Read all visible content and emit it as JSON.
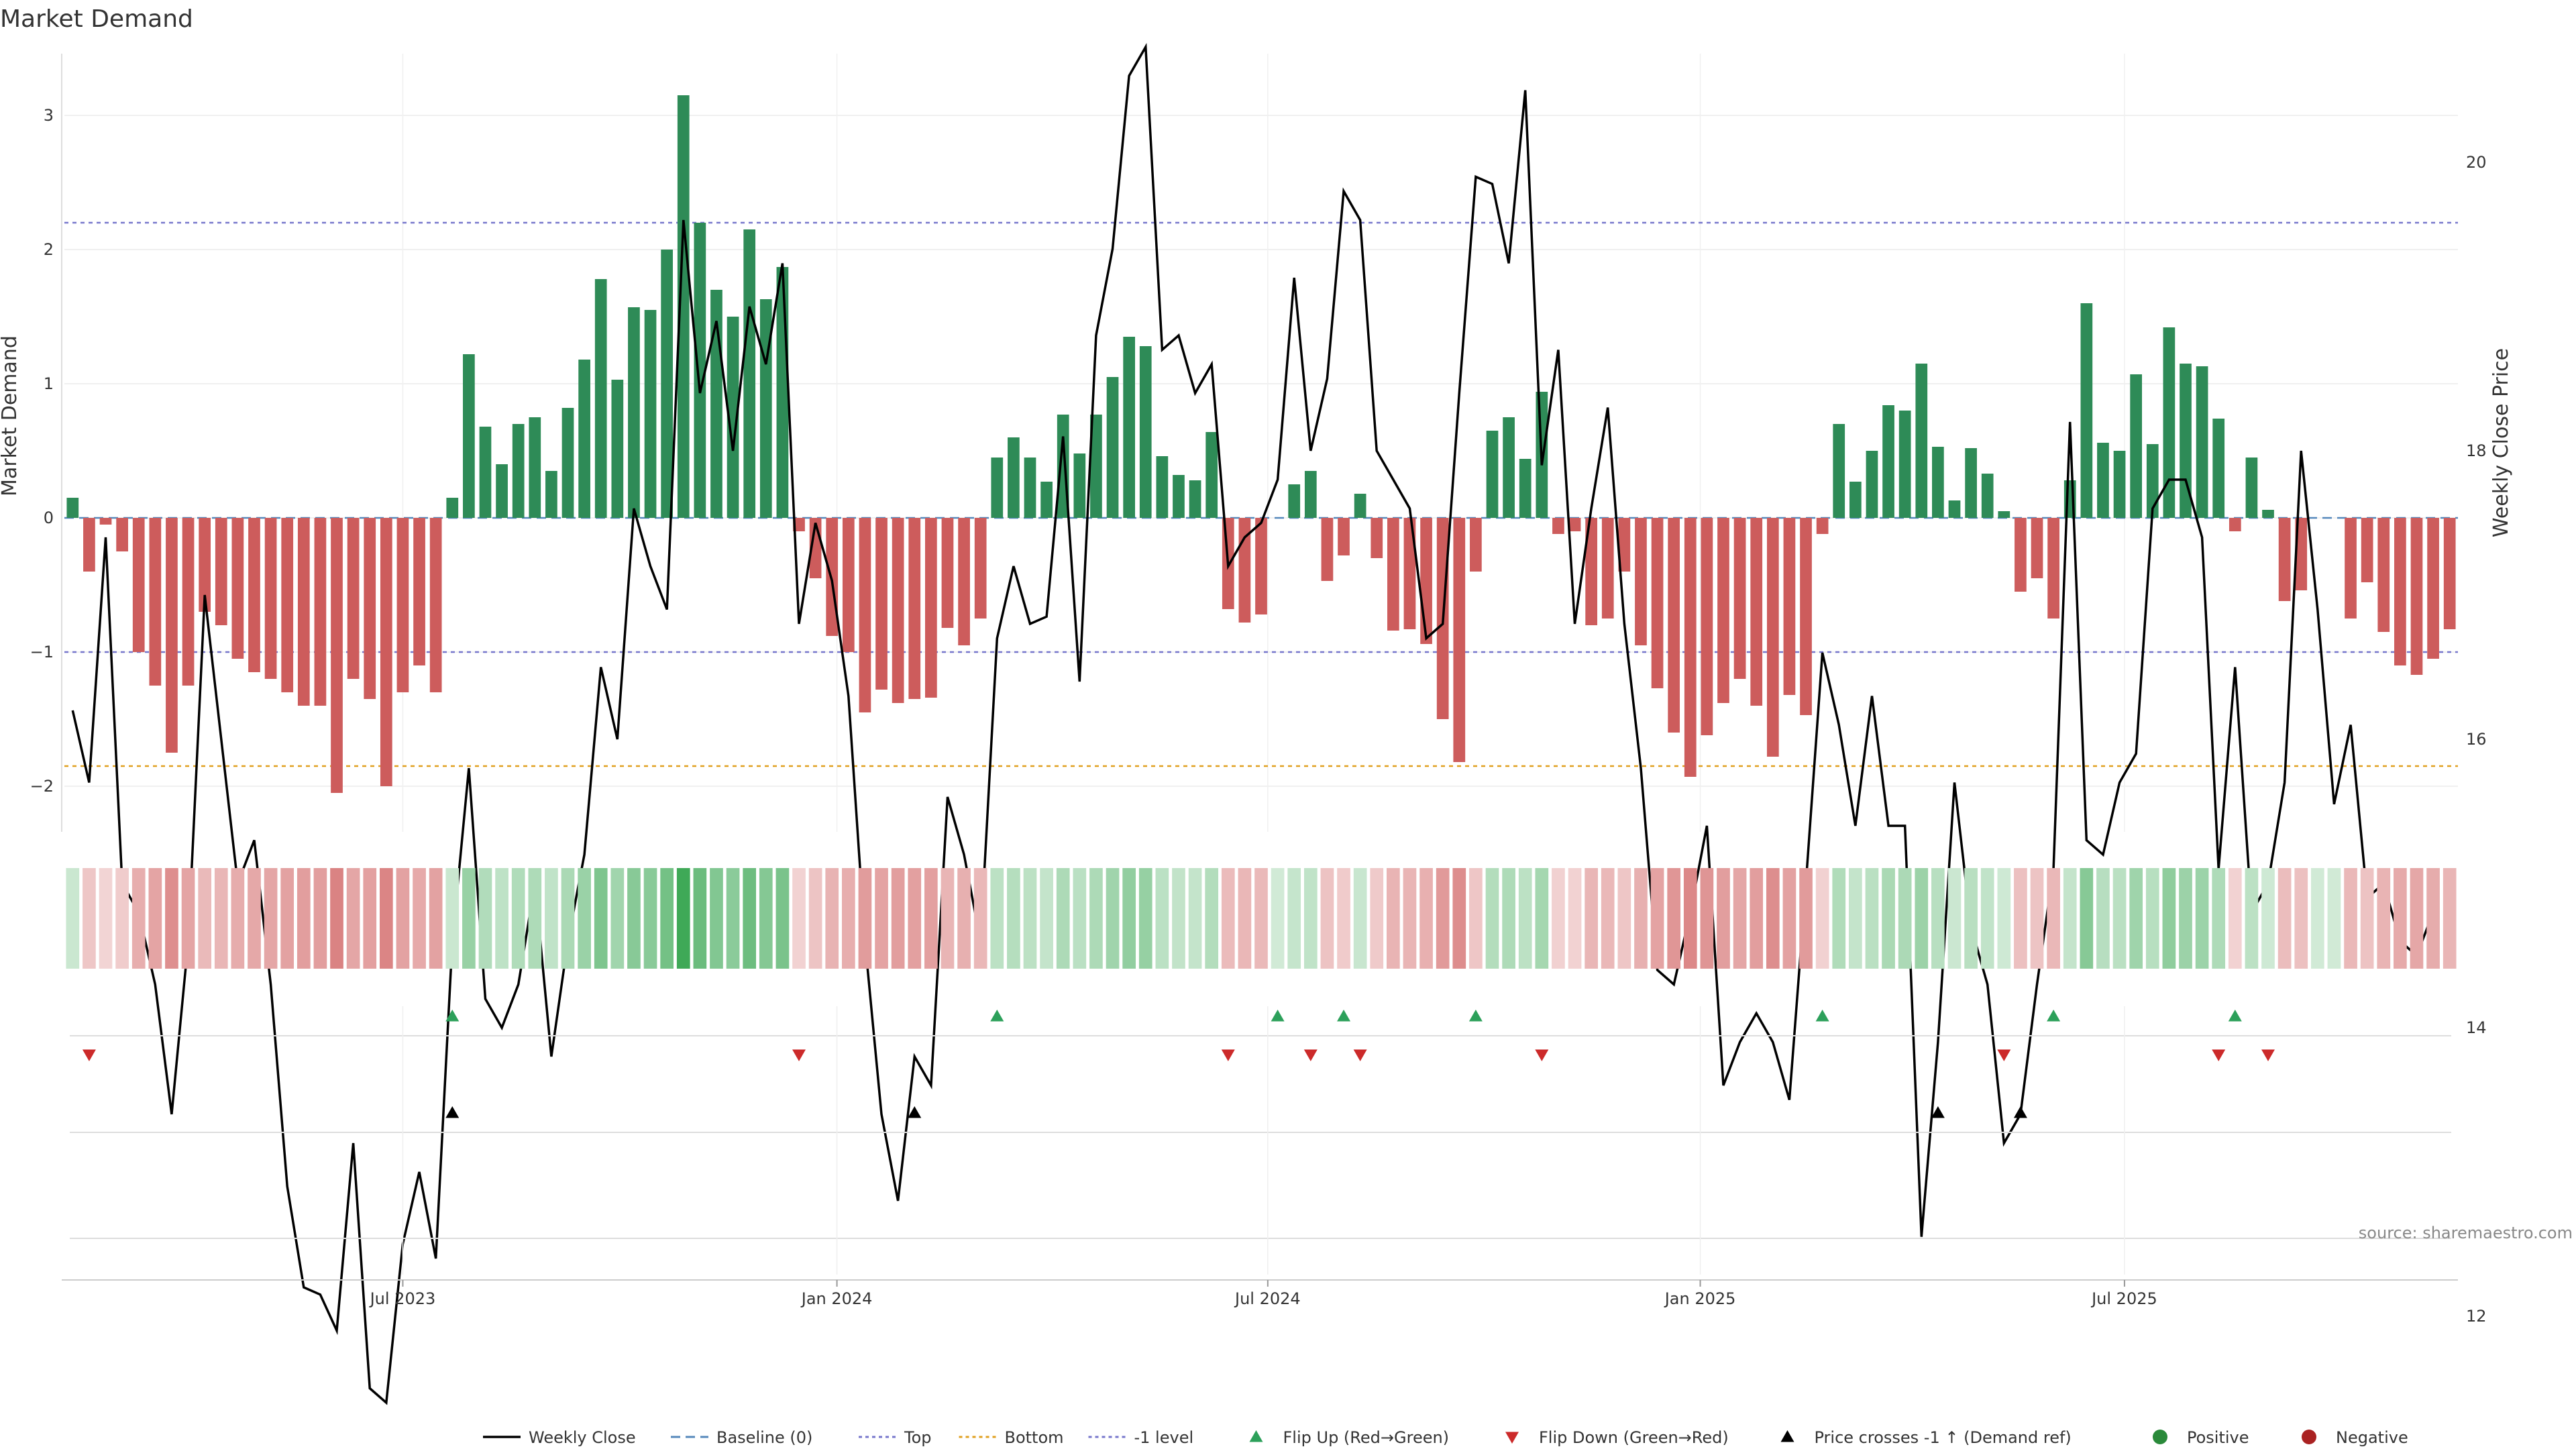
{
  "chart_data": {
    "type": "bar",
    "title": "Market Demand",
    "ylabel_left": "Market Demand",
    "ylabel_right": "Weekly Close Price",
    "source": "source: sharemaestro.com",
    "x_range": [
      0,
      144
    ],
    "ylim_left": [
      -2.3,
      3.25
    ],
    "ylim_right": [
      11.4,
      20.9
    ],
    "yticks_left": [
      {
        "v": -2,
        "label": "−2"
      },
      {
        "v": -1,
        "label": "−1"
      },
      {
        "v": 0,
        "label": "0"
      },
      {
        "v": 1,
        "label": "1"
      },
      {
        "v": 2,
        "label": "2"
      },
      {
        "v": 3,
        "label": "3"
      }
    ],
    "yticks_right": [
      {
        "v": 12,
        "label": "12"
      },
      {
        "v": 14,
        "label": "14"
      },
      {
        "v": 16,
        "label": "16"
      },
      {
        "v": 18,
        "label": "18"
      },
      {
        "v": 20,
        "label": "20"
      }
    ],
    "xticks": [
      {
        "x": 20.5,
        "label": "Jul 2023"
      },
      {
        "x": 46.8,
        "label": "Jan 2024"
      },
      {
        "x": 72.9,
        "label": "Jul 2024"
      },
      {
        "x": 99.1,
        "label": "Jan 2025"
      },
      {
        "x": 124.8,
        "label": "Jul 2025"
      }
    ],
    "reference_lines": [
      {
        "name": "Top",
        "value": 2.2,
        "color": "#7777cc",
        "dash": "6,6"
      },
      {
        "name": "Bottom",
        "value": -1.85,
        "color": "#e0a020",
        "dash": "6,6"
      },
      {
        "name": "-1 level",
        "value": -1.0,
        "color": "#7777cc",
        "dash": "6,6"
      },
      {
        "name": "Baseline (0)",
        "value": 0,
        "color": "#5588bb",
        "dash": "14,8"
      }
    ],
    "series": [
      {
        "name": "Market Demand",
        "type": "bar",
        "values": [
          0.15,
          -0.4,
          -0.05,
          -0.25,
          -1.0,
          -1.25,
          -1.75,
          -1.25,
          -0.7,
          -0.8,
          -1.05,
          -1.15,
          -1.2,
          -1.3,
          -1.4,
          -1.4,
          -2.05,
          -1.2,
          -1.35,
          -2.0,
          -1.3,
          -1.1,
          -1.3,
          0.15,
          1.22,
          0.68,
          0.4,
          0.7,
          0.75,
          0.35,
          0.82,
          1.18,
          1.78,
          1.03,
          1.57,
          1.55,
          2.0,
          3.15,
          2.2,
          1.7,
          1.5,
          2.15,
          1.63,
          1.87,
          -0.1,
          -0.45,
          -0.88,
          -1.0,
          -1.45,
          -1.28,
          -1.38,
          -1.35,
          -1.34,
          -0.82,
          -0.95,
          -0.75,
          0.45,
          0.6,
          0.45,
          0.27,
          0.77,
          0.48,
          0.77,
          1.05,
          1.35,
          1.28,
          0.46,
          0.32,
          0.28,
          0.64,
          -0.68,
          -0.78,
          -0.72,
          0.0,
          0.25,
          0.35,
          -0.47,
          -0.28,
          0.18,
          -0.3,
          -0.84,
          -0.83,
          -0.94,
          -1.5,
          -1.82,
          -0.4,
          0.65,
          0.75,
          0.44,
          0.94,
          -0.12,
          -0.1,
          -0.8,
          -0.75,
          -0.4,
          -0.95,
          -1.27,
          -1.6,
          -1.93,
          -1.62,
          -1.38,
          -1.2,
          -1.4,
          -1.78,
          -1.32,
          -1.47,
          -0.12,
          0.7,
          0.27,
          0.5,
          0.84,
          0.8,
          1.15,
          0.53,
          0.13,
          0.52,
          0.33,
          0.05,
          -0.55,
          -0.45,
          -0.75,
          0.28,
          1.6,
          0.56,
          0.5,
          1.07,
          0.55,
          1.42,
          1.15,
          1.13,
          0.74,
          -0.1,
          0.45,
          0.06,
          -0.62,
          -0.54,
          0.0,
          0.0,
          -0.75,
          -0.48,
          -0.85,
          -1.1,
          -1.17,
          -1.05,
          -0.83
        ]
      },
      {
        "name": "Weekly Close",
        "type": "line",
        "axis": "right",
        "values": [
          16.2,
          15.7,
          17.4,
          15.0,
          14.8,
          14.3,
          13.4,
          14.6,
          17.0,
          16.0,
          15.0,
          15.3,
          14.3,
          12.9,
          12.2,
          12.15,
          11.9,
          13.2,
          11.5,
          11.4,
          12.5,
          13.0,
          12.4,
          14.6,
          15.8,
          14.2,
          14.0,
          14.3,
          15.0,
          13.8,
          14.6,
          15.2,
          16.5,
          16.0,
          17.6,
          17.2,
          16.9,
          19.6,
          18.4,
          18.9,
          18.0,
          19.0,
          18.6,
          19.3,
          16.8,
          17.5,
          17.1,
          16.3,
          14.6,
          13.4,
          12.8,
          13.8,
          13.6,
          15.6,
          15.2,
          14.6,
          16.7,
          17.2,
          16.8,
          16.85,
          18.1,
          16.4,
          18.8,
          19.4,
          20.6,
          20.8,
          18.7,
          18.8,
          18.4,
          18.6,
          17.2,
          17.4,
          17.5,
          17.8,
          19.2,
          18.0,
          18.5,
          19.8,
          19.6,
          18.0,
          17.8,
          17.6,
          16.7,
          16.8,
          18.4,
          19.9,
          19.85,
          19.3,
          20.5,
          17.9,
          18.7,
          16.8,
          17.6,
          18.3,
          16.8,
          15.8,
          14.4,
          14.3,
          14.8,
          15.4,
          13.6,
          13.9,
          14.1,
          13.9,
          13.5,
          15.0,
          16.6,
          16.1,
          15.4,
          16.3,
          15.4,
          15.4,
          12.55,
          13.9,
          15.7,
          14.7,
          14.3,
          13.2,
          13.4,
          14.3,
          15.1,
          18.2,
          15.3,
          15.2,
          15.7,
          15.9,
          17.6,
          17.8,
          17.8,
          17.4,
          15.1,
          16.5,
          14.8,
          15.0,
          15.7,
          18.0,
          16.9,
          15.55,
          16.1,
          14.9,
          15.0,
          14.6,
          14.5,
          14.8
        ]
      }
    ],
    "heat_strip": {
      "description": "color intensity by demand value",
      "values_ref": "Market Demand"
    },
    "flip_up_x": [
      23,
      56,
      73,
      77,
      85,
      106,
      120,
      131
    ],
    "flip_down_x": [
      1,
      44,
      70,
      75,
      78,
      89,
      117,
      130,
      133
    ],
    "demand_ref_cross_x": [
      23,
      51,
      113,
      118
    ],
    "legend": [
      {
        "label": "Weekly Close",
        "kind": "line",
        "color": "#000000"
      },
      {
        "label": "Baseline (0)",
        "kind": "dash",
        "color": "#5588bb"
      },
      {
        "label": "Top",
        "kind": "dot",
        "color": "#7777cc"
      },
      {
        "label": "Bottom",
        "kind": "dot",
        "color": "#e0a020"
      },
      {
        "label": "-1 level",
        "kind": "dot",
        "color": "#7777cc"
      },
      {
        "label": "Flip Up (Red→Green)",
        "kind": "tri-up",
        "color": "#2ca05a"
      },
      {
        "label": "Flip Down (Green→Red)",
        "kind": "tri-down",
        "color": "#cc2a2a"
      },
      {
        "label": "Price crosses -1 ↑ (Demand ref)",
        "kind": "tri-up",
        "color": "#000000"
      },
      {
        "label": "Positive",
        "kind": "circle",
        "color": "#2a8a3a"
      },
      {
        "label": "Negative",
        "kind": "circle",
        "color": "#aa2222"
      }
    ],
    "colors": {
      "positive_bar": "#2e8b57",
      "negative_bar": "#cd5c5c",
      "price_line": "#000000"
    }
  }
}
